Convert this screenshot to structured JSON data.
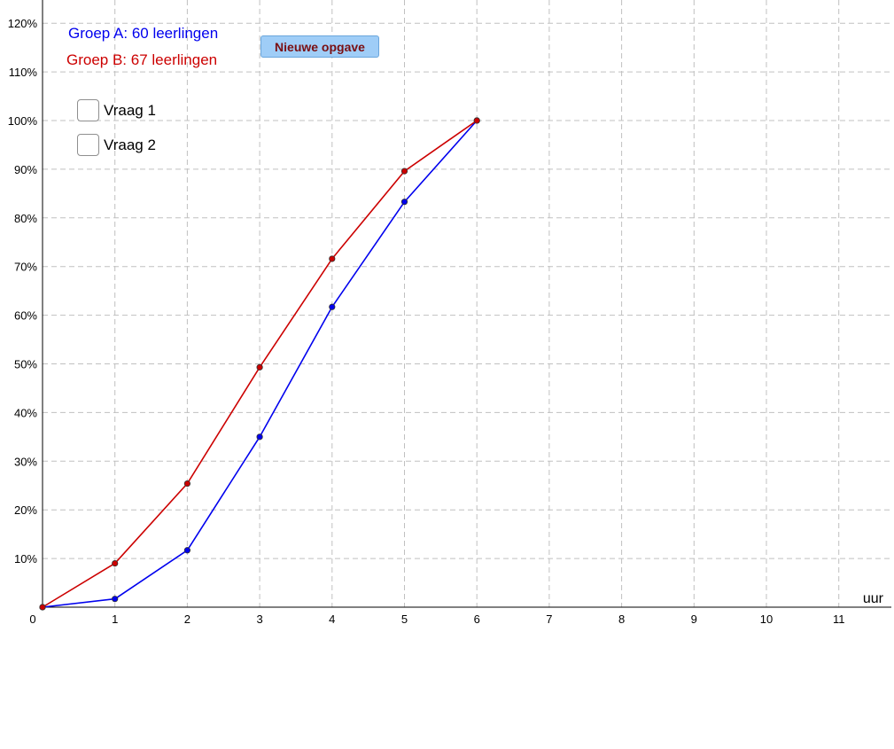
{
  "colors": {
    "group_a": "#0000ee",
    "group_b": "#cc0000",
    "button_bg": "#9fcdf7",
    "button_text": "#7a0f12",
    "grid": "#c0c0c0"
  },
  "labels": {
    "group_a": "Groep A: 60 leerlingen",
    "group_b": "Groep B: 67 leerlingen"
  },
  "button": {
    "label": "Nieuwe opgave"
  },
  "checkboxes": [
    {
      "label": "Vraag 1",
      "checked": false
    },
    {
      "label": "Vraag 2",
      "checked": false
    }
  ],
  "chart_data": {
    "type": "line",
    "xlabel": "uur",
    "ylabel": "",
    "xlim": [
      0,
      11.5
    ],
    "ylim": [
      0,
      120
    ],
    "grid": true,
    "x_ticks": [
      "0",
      "1",
      "2",
      "3",
      "4",
      "5",
      "6",
      "7",
      "8",
      "9",
      "10",
      "11"
    ],
    "y_ticks": [
      "10%",
      "20%",
      "30%",
      "40%",
      "50%",
      "60%",
      "70%",
      "80%",
      "90%",
      "100%",
      "110%",
      "120%"
    ],
    "series": [
      {
        "name": "Groep A: 60 leerlingen",
        "color": "#0000ee",
        "x": [
          0,
          1,
          2,
          3,
          4,
          5,
          6
        ],
        "y": [
          0,
          1.7,
          11.7,
          35.0,
          61.7,
          83.3,
          100
        ]
      },
      {
        "name": "Groep B: 67 leerlingen",
        "color": "#cc0000",
        "x": [
          0,
          1,
          2,
          3,
          4,
          5,
          6
        ],
        "y": [
          0,
          9.0,
          25.4,
          49.3,
          71.6,
          89.6,
          100
        ]
      }
    ]
  }
}
